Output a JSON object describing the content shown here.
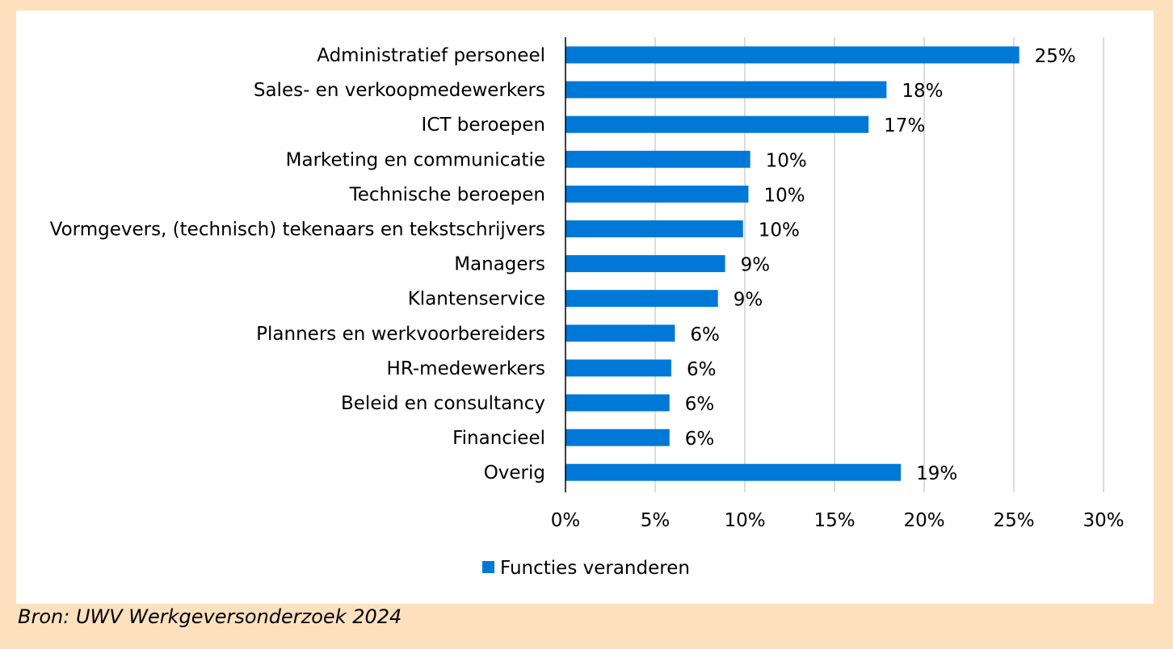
{
  "chart_data": {
    "type": "bar",
    "orientation": "horizontal",
    "categories": [
      "Administratief personeel",
      "Sales- en verkoopmedewerkers",
      "ICT beroepen",
      "Marketing en communicatie",
      "Technische beroepen",
      "Vormgevers, (technisch) tekenaars en tekstschrijvers",
      "Managers",
      "Klantenservice",
      "Planners en werkvoorbereiders",
      "HR-medewerkers",
      "Beleid en consultancy",
      "Financieel",
      "Overig"
    ],
    "series": [
      {
        "name": "Functies veranderen",
        "color": "#0078d7",
        "values": [
          25.3,
          17.9,
          16.9,
          10.3,
          10.2,
          9.9,
          8.9,
          8.5,
          6.1,
          5.9,
          5.8,
          5.8,
          18.7
        ],
        "labels": [
          "25%",
          "18%",
          "17%",
          "10%",
          "10%",
          "10%",
          "9%",
          "9%",
          "6%",
          "6%",
          "6%",
          "6%",
          "19%"
        ]
      }
    ],
    "xlim": [
      0,
      30
    ],
    "x_ticks": [
      0,
      5,
      10,
      15,
      20,
      25,
      30
    ],
    "x_tick_labels": [
      "0%",
      "5%",
      "10%",
      "15%",
      "20%",
      "25%",
      "30%"
    ],
    "grid": true,
    "legend_position": "bottom",
    "title": "",
    "xlabel": "",
    "ylabel": ""
  },
  "legend": {
    "label": "Functies veranderen"
  },
  "source": "Bron: UWV Werkgeversonderzoek 2024"
}
